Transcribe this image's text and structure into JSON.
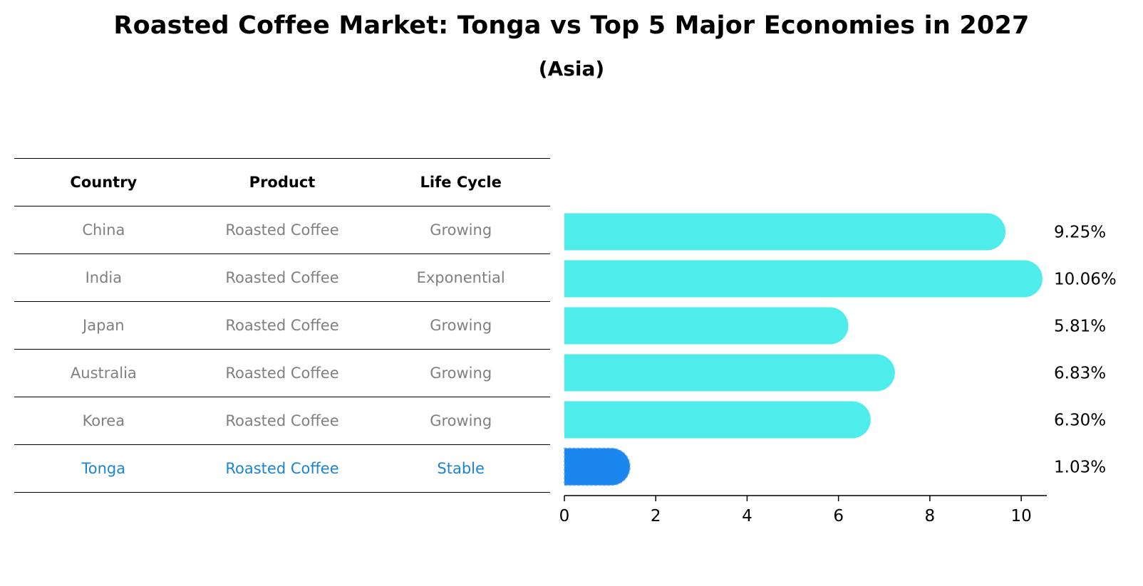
{
  "title": "Roasted Coffee Market: Tonga vs Top 5 Major Economies in 2027",
  "subtitle": "(Asia)",
  "table": {
    "headers": [
      "Country",
      "Product",
      "Life Cycle"
    ],
    "rows": [
      {
        "country": "China",
        "product": "Roasted Coffee",
        "life_cycle": "Growing"
      },
      {
        "country": "India",
        "product": "Roasted Coffee",
        "life_cycle": "Exponential"
      },
      {
        "country": "Japan",
        "product": "Roasted Coffee",
        "life_cycle": "Growing"
      },
      {
        "country": "Australia",
        "product": "Roasted Coffee",
        "life_cycle": "Growing"
      },
      {
        "country": "Korea",
        "product": "Roasted Coffee",
        "life_cycle": "Growing"
      },
      {
        "country": "Tonga",
        "product": "Roasted Coffee",
        "life_cycle": "Stable"
      }
    ]
  },
  "chart_data": {
    "type": "bar",
    "orientation": "horizontal",
    "categories": [
      "China",
      "India",
      "Japan",
      "Australia",
      "Korea",
      "Tonga"
    ],
    "values": [
      9.25,
      10.06,
      5.81,
      6.83,
      6.3,
      1.03
    ],
    "value_labels": [
      "9.25%",
      "10.06%",
      "5.81%",
      "6.83%",
      "6.30%",
      "1.03%"
    ],
    "xlim": [
      0,
      10.56
    ],
    "xticks": [
      0,
      2,
      4,
      6,
      8,
      10
    ],
    "xlabel": "",
    "ylabel": "",
    "colors": {
      "default": "#4eecea",
      "highlight": "#1b87ee"
    },
    "highlight_index": 5
  }
}
